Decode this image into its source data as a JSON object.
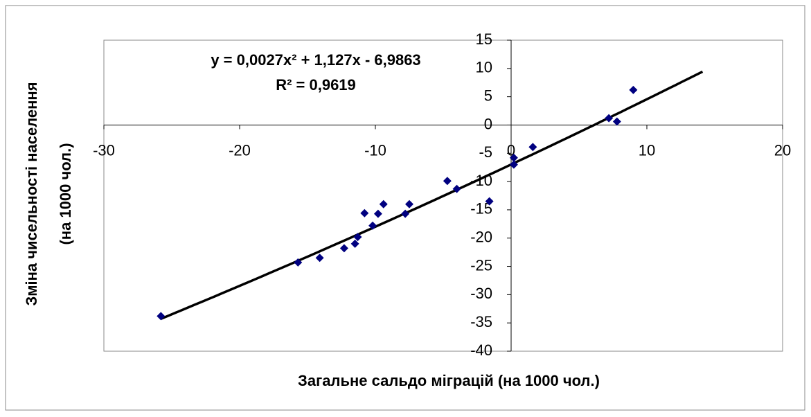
{
  "chart_data": {
    "type": "scatter",
    "x_label": "Загальне сальдо міграцій (на 1000 чол.)",
    "y_label": [
      "Зміна чисельності населення",
      "(на 1000 чол.)"
    ],
    "series": [
      {
        "color": "#000080",
        "x": [
          -25.8,
          -15.7,
          -14.1,
          -12.3,
          -11.5,
          -11.3,
          -10.8,
          -10.2,
          -9.8,
          -9.4,
          -7.8,
          -7.5,
          -4.7,
          -4.0,
          -1.6,
          0.2,
          0.2,
          1.6,
          7.2,
          7.8,
          9.0
        ],
        "values": [
          -33.8,
          -24.3,
          -23.5,
          -21.8,
          -21.0,
          -19.8,
          -15.6,
          -17.8,
          -15.7,
          -14.0,
          -15.7,
          -14.0,
          -9.9,
          -11.3,
          -13.5,
          -7.0,
          -5.8,
          -3.9,
          1.2,
          0.6,
          6.2
        ]
      }
    ],
    "trendline": {
      "equation": "y = 0,0027x² + 1,127x - 6,9863",
      "r2": "R² = 0,9619",
      "coefficients": [
        0.0027,
        1.127,
        -6.9863
      ],
      "x": [
        -25.8,
        14.1
      ],
      "color": "#000000"
    },
    "xlim": [
      -30,
      20
    ],
    "xticks": [
      -30,
      -20,
      -10,
      0,
      10,
      20
    ],
    "ylim": [
      -40,
      15
    ],
    "yticks": [
      -40,
      -35,
      -30,
      -25,
      -20,
      -15,
      -10,
      -5,
      0,
      5,
      10,
      15
    ]
  }
}
